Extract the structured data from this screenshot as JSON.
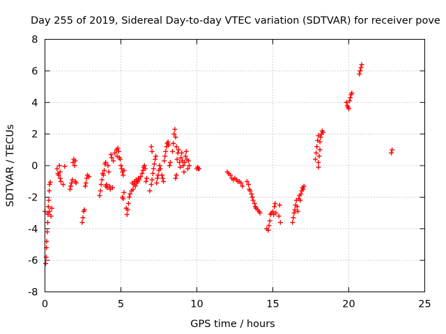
{
  "chart_data": {
    "type": "scatter",
    "title": "Day 255 of 2019, Sidereal Day-to-day VTEC variation (SDTVAR) for receiver pove",
    "xlabel": "GPS time / hours",
    "ylabel": "SDTVAR / TECUs",
    "xlim": [
      0,
      25
    ],
    "ylim": [
      -8,
      8
    ],
    "xticks": [
      0,
      5,
      10,
      15,
      20,
      25
    ],
    "yticks": [
      -8,
      -6,
      -4,
      -2,
      0,
      2,
      4,
      6,
      8
    ],
    "grid": true,
    "marker": "+",
    "color": "#ff0000",
    "series": [
      {
        "name": "SDTVAR",
        "points": [
          [
            0.0,
            -2.9
          ],
          [
            0.05,
            -6.2
          ],
          [
            0.08,
            -5.8
          ],
          [
            0.1,
            -5.2
          ],
          [
            0.12,
            -4.8
          ],
          [
            0.15,
            -4.2
          ],
          [
            0.18,
            -3.6
          ],
          [
            0.2,
            -3.1
          ],
          [
            0.22,
            -2.6
          ],
          [
            0.25,
            -2.2
          ],
          [
            0.28,
            -1.6
          ],
          [
            0.3,
            -1.2
          ],
          [
            0.35,
            -1.05
          ],
          [
            0.2,
            -3.0
          ],
          [
            0.3,
            -2.9
          ],
          [
            0.4,
            -3.2
          ],
          [
            0.45,
            -2.7
          ],
          [
            0.8,
            -0.2
          ],
          [
            0.85,
            -0.5
          ],
          [
            0.9,
            -0.6
          ],
          [
            0.95,
            0.0
          ],
          [
            1.0,
            -0.4
          ],
          [
            1.0,
            -0.8
          ],
          [
            1.05,
            -1.0
          ],
          [
            1.2,
            -1.2
          ],
          [
            1.3,
            -0.05
          ],
          [
            1.65,
            -1.5
          ],
          [
            1.7,
            -1.3
          ],
          [
            1.75,
            -1.1
          ],
          [
            1.8,
            -0.9
          ],
          [
            1.85,
            0.2
          ],
          [
            1.9,
            0.4
          ],
          [
            1.95,
            0.0
          ],
          [
            2.0,
            -1.0
          ],
          [
            2.0,
            0.3
          ],
          [
            2.05,
            -1.1
          ],
          [
            2.45,
            -3.6
          ],
          [
            2.5,
            -3.3
          ],
          [
            2.55,
            -2.9
          ],
          [
            2.6,
            -2.8
          ],
          [
            2.65,
            -1.3
          ],
          [
            2.7,
            -1.1
          ],
          [
            2.75,
            -0.8
          ],
          [
            2.8,
            -0.6
          ],
          [
            2.9,
            -0.7
          ],
          [
            3.6,
            -1.9
          ],
          [
            3.65,
            -1.6
          ],
          [
            3.7,
            -1.2
          ],
          [
            3.75,
            -0.9
          ],
          [
            3.8,
            -0.5
          ],
          [
            3.85,
            -0.6
          ],
          [
            3.9,
            -0.3
          ],
          [
            3.95,
            0.1
          ],
          [
            4.0,
            0.2
          ],
          [
            4.0,
            -1.3
          ],
          [
            4.05,
            -1.2
          ],
          [
            4.1,
            -1.4
          ],
          [
            4.15,
            0.0
          ],
          [
            4.2,
            -0.4
          ],
          [
            4.25,
            -1.3
          ],
          [
            4.3,
            -1.5
          ],
          [
            4.35,
            0.7
          ],
          [
            4.4,
            0.5
          ],
          [
            4.45,
            -1.4
          ],
          [
            4.5,
            0.3
          ],
          [
            4.6,
            0.8
          ],
          [
            4.7,
            1.0
          ],
          [
            4.75,
            0.6
          ],
          [
            4.8,
            1.1
          ],
          [
            4.85,
            0.9
          ],
          [
            4.9,
            0.5
          ],
          [
            4.95,
            0.4
          ],
          [
            5.0,
            0.0
          ],
          [
            5.05,
            -0.2
          ],
          [
            5.1,
            -0.4
          ],
          [
            5.15,
            -0.6
          ],
          [
            5.2,
            -0.3
          ],
          [
            5.1,
            -2.0
          ],
          [
            5.15,
            -2.1
          ],
          [
            5.2,
            -1.7
          ],
          [
            5.35,
            -2.7
          ],
          [
            5.4,
            -3.1
          ],
          [
            5.45,
            -2.8
          ],
          [
            5.5,
            -2.4
          ],
          [
            5.55,
            -2.0
          ],
          [
            5.6,
            -1.8
          ],
          [
            5.7,
            -1.6
          ],
          [
            5.75,
            -1.1
          ],
          [
            5.8,
            -1.5
          ],
          [
            5.85,
            -1.2
          ],
          [
            5.9,
            -1.0
          ],
          [
            5.95,
            -1.3
          ],
          [
            6.0,
            -0.9
          ],
          [
            6.05,
            -1.1
          ],
          [
            6.1,
            -1.0
          ],
          [
            6.15,
            -0.8
          ],
          [
            6.2,
            -0.9
          ],
          [
            6.3,
            -0.7
          ],
          [
            6.4,
            -0.5
          ],
          [
            6.45,
            -0.3
          ],
          [
            6.5,
            -0.1
          ],
          [
            6.55,
            0.0
          ],
          [
            6.6,
            -0.2
          ],
          [
            6.65,
            -1.0
          ],
          [
            6.7,
            -0.8
          ],
          [
            6.9,
            -1.6
          ],
          [
            7.0,
            -1.2
          ],
          [
            7.05,
            -0.9
          ],
          [
            7.1,
            -0.5
          ],
          [
            7.15,
            -0.2
          ],
          [
            7.2,
            0.1
          ],
          [
            7.25,
            0.4
          ],
          [
            7.3,
            0.6
          ],
          [
            7.35,
            -1.1
          ],
          [
            7.4,
            -0.8
          ],
          [
            7.45,
            -0.6
          ],
          [
            7.5,
            -0.3
          ],
          [
            7.55,
            0.0
          ],
          [
            7.6,
            -0.2
          ],
          [
            7.7,
            -0.6
          ],
          [
            7.75,
            -0.8
          ],
          [
            7.8,
            -1.0
          ],
          [
            7.85,
            0.3
          ],
          [
            7.9,
            0.6
          ],
          [
            7.95,
            0.9
          ],
          [
            8.0,
            1.2
          ],
          [
            8.05,
            1.4
          ],
          [
            8.1,
            1.5
          ],
          [
            8.15,
            1.3
          ],
          [
            8.2,
            0.0
          ],
          [
            8.25,
            0.2
          ],
          [
            7.0,
            1.2
          ],
          [
            7.05,
            0.9
          ],
          [
            8.4,
            0.9
          ],
          [
            8.45,
            1.4
          ],
          [
            8.5,
            2.0
          ],
          [
            8.55,
            2.3
          ],
          [
            8.6,
            1.8
          ],
          [
            8.65,
            1.2
          ],
          [
            8.6,
            -0.8
          ],
          [
            8.65,
            -0.6
          ],
          [
            8.7,
            0.4
          ],
          [
            8.75,
            0.8
          ],
          [
            8.8,
            1.0
          ],
          [
            8.85,
            0.2
          ],
          [
            8.9,
            -0.1
          ],
          [
            8.95,
            0.5
          ],
          [
            9.0,
            0.8
          ],
          [
            9.05,
            0.3
          ],
          [
            9.1,
            0.0
          ],
          [
            9.15,
            -0.4
          ],
          [
            9.2,
            0.2
          ],
          [
            9.25,
            0.6
          ],
          [
            9.3,
            0.9
          ],
          [
            9.35,
            0.4
          ],
          [
            9.4,
            -0.2
          ],
          [
            9.45,
            0.3
          ],
          [
            9.5,
            0.0
          ],
          [
            10.0,
            -0.2
          ],
          [
            10.05,
            -0.1
          ],
          [
            10.1,
            -0.2
          ],
          [
            10.15,
            -0.2
          ],
          [
            12.0,
            -0.4
          ],
          [
            12.1,
            -0.5
          ],
          [
            12.2,
            -0.6
          ],
          [
            12.3,
            -0.8
          ],
          [
            12.4,
            -0.9
          ],
          [
            12.5,
            -0.8
          ],
          [
            12.6,
            -0.9
          ],
          [
            12.7,
            -1.0
          ],
          [
            12.8,
            -1.0
          ],
          [
            12.9,
            -1.1
          ],
          [
            13.0,
            -1.3
          ],
          [
            13.3,
            -1.0
          ],
          [
            13.4,
            -1.2
          ],
          [
            13.45,
            -1.5
          ],
          [
            13.5,
            -1.6
          ],
          [
            13.6,
            -1.8
          ],
          [
            13.65,
            -2.0
          ],
          [
            13.7,
            -2.2
          ],
          [
            13.8,
            -2.4
          ],
          [
            13.85,
            -2.6
          ],
          [
            13.9,
            -2.7
          ],
          [
            14.0,
            -2.8
          ],
          [
            14.1,
            -2.9
          ],
          [
            14.15,
            -3.0
          ],
          [
            14.6,
            -4.0
          ],
          [
            14.7,
            -4.1
          ],
          [
            14.75,
            -3.8
          ],
          [
            14.8,
            -3.5
          ],
          [
            14.85,
            -3.1
          ],
          [
            14.9,
            -3.0
          ],
          [
            15.0,
            -2.9
          ],
          [
            15.05,
            -3.1
          ],
          [
            15.1,
            -2.6
          ],
          [
            15.15,
            -2.4
          ],
          [
            15.2,
            -3.0
          ],
          [
            15.4,
            -3.2
          ],
          [
            15.45,
            -2.5
          ],
          [
            15.5,
            -3.6
          ],
          [
            16.3,
            -3.6
          ],
          [
            16.35,
            -3.3
          ],
          [
            16.4,
            -3.0
          ],
          [
            16.45,
            -2.8
          ],
          [
            16.5,
            -2.5
          ],
          [
            16.55,
            -2.2
          ],
          [
            16.6,
            -2.6
          ],
          [
            16.65,
            -2.9
          ],
          [
            16.7,
            -2.1
          ],
          [
            16.75,
            -1.9
          ],
          [
            16.8,
            -2.2
          ],
          [
            16.85,
            -1.8
          ],
          [
            16.9,
            -1.6
          ],
          [
            16.95,
            -1.4
          ],
          [
            17.0,
            -1.5
          ],
          [
            17.05,
            -1.3
          ],
          [
            17.8,
            0.4
          ],
          [
            17.85,
            0.8
          ],
          [
            17.9,
            1.2
          ],
          [
            17.95,
            1.6
          ],
          [
            18.0,
            1.9
          ],
          [
            18.0,
            -0.1
          ],
          [
            18.05,
            0.6
          ],
          [
            18.1,
            1.0
          ],
          [
            18.15,
            1.8
          ],
          [
            18.2,
            2.0
          ],
          [
            18.25,
            2.2
          ],
          [
            18.3,
            2.1
          ],
          [
            18.0,
            0.2
          ],
          [
            18.1,
            1.5
          ],
          [
            19.85,
            4.0
          ],
          [
            19.9,
            3.8
          ],
          [
            19.95,
            3.7
          ],
          [
            20.0,
            3.6
          ],
          [
            20.05,
            4.1
          ],
          [
            20.1,
            4.3
          ],
          [
            20.15,
            4.5
          ],
          [
            20.2,
            4.6
          ],
          [
            20.7,
            5.8
          ],
          [
            20.75,
            6.0
          ],
          [
            20.8,
            6.2
          ],
          [
            20.85,
            6.4
          ],
          [
            22.8,
            0.8
          ],
          [
            22.85,
            1.0
          ]
        ]
      }
    ]
  }
}
